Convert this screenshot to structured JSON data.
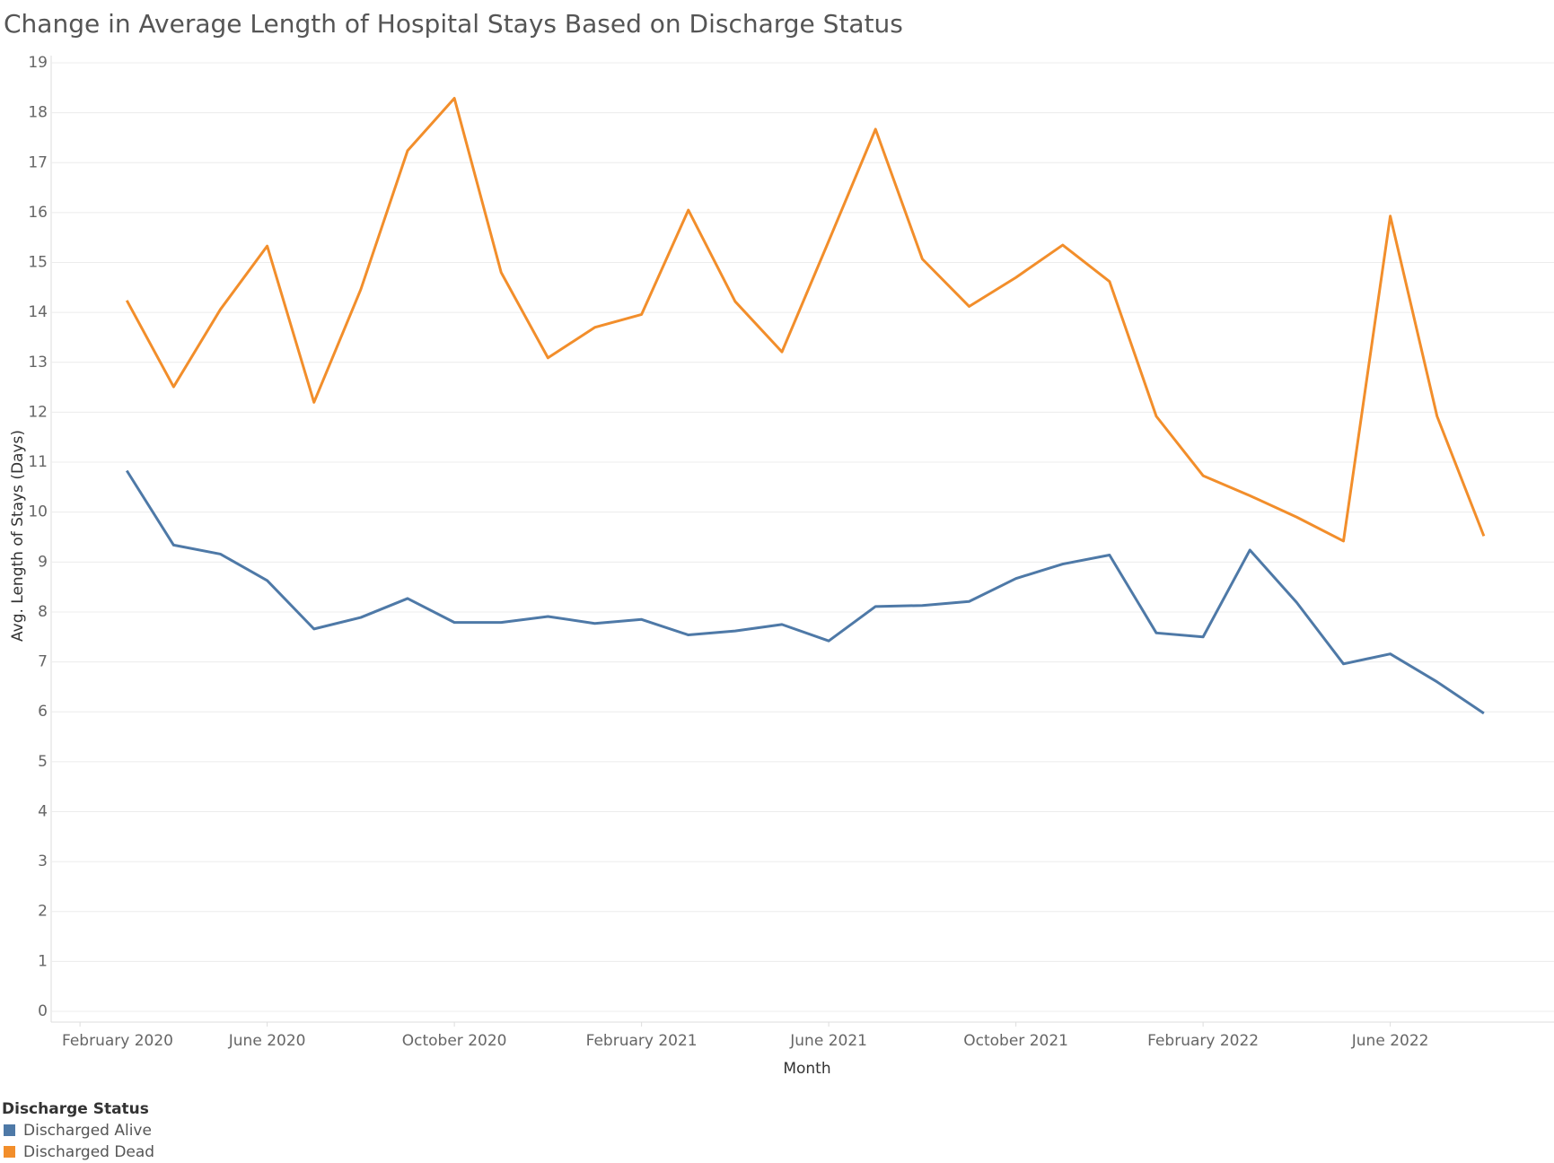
{
  "chart_data": {
    "type": "line",
    "title": "Change in Average Length of Hospital Stays Based on Discharge Status",
    "x_label": "Month",
    "y_label": "Avg. Length of Stays (Days)",
    "legend_title": "Discharge Status",
    "x": [
      "2020-03",
      "2020-04",
      "2020-05",
      "2020-06",
      "2020-07",
      "2020-08",
      "2020-09",
      "2020-10",
      "2020-11",
      "2020-12",
      "2021-01",
      "2021-02",
      "2021-03",
      "2021-04",
      "2021-05",
      "2021-06",
      "2021-07",
      "2021-08",
      "2021-09",
      "2021-10",
      "2021-11",
      "2021-12",
      "2022-01",
      "2022-02",
      "2022-03",
      "2022-04",
      "2022-05",
      "2022-06",
      "2022-07",
      "2022-08"
    ],
    "series": [
      {
        "name": "Discharged Alive",
        "color": "#4e79a7",
        "values": [
          10.83,
          9.34,
          9.16,
          8.63,
          7.66,
          7.89,
          8.27,
          7.79,
          7.79,
          7.91,
          7.77,
          7.85,
          7.54,
          7.62,
          7.75,
          7.42,
          8.11,
          8.13,
          8.21,
          8.67,
          8.96,
          9.14,
          7.58,
          7.5,
          9.24,
          8.19,
          6.96,
          7.16,
          6.6,
          5.97
        ]
      },
      {
        "name": "Discharged Dead",
        "color": "#f28e2b",
        "values": [
          14.24,
          12.51,
          14.06,
          15.33,
          12.2,
          14.46,
          17.24,
          18.29,
          14.8,
          13.09,
          13.7,
          13.96,
          16.05,
          14.22,
          13.21,
          15.43,
          17.67,
          15.07,
          14.12,
          14.7,
          15.35,
          14.62,
          11.92,
          10.73,
          10.33,
          9.9,
          9.42,
          15.93,
          11.92,
          9.52
        ]
      }
    ],
    "xlim": [
      "2020-01",
      "2022-09"
    ],
    "xticks": [
      {
        "value": "2020-02",
        "label": "February 2020"
      },
      {
        "value": "2020-06",
        "label": "June 2020"
      },
      {
        "value": "2020-10",
        "label": "October 2020"
      },
      {
        "value": "2021-02",
        "label": "February 2021"
      },
      {
        "value": "2021-06",
        "label": "June 2021"
      },
      {
        "value": "2021-10",
        "label": "October 2021"
      },
      {
        "value": "2022-02",
        "label": "February 2022"
      },
      {
        "value": "2022-06",
        "label": "June 2022"
      }
    ],
    "ylim": [
      0,
      19
    ],
    "yticks": [
      0,
      1,
      2,
      3,
      4,
      5,
      6,
      7,
      8,
      9,
      10,
      11,
      12,
      13,
      14,
      15,
      16,
      17,
      18,
      19
    ],
    "grid": true
  }
}
